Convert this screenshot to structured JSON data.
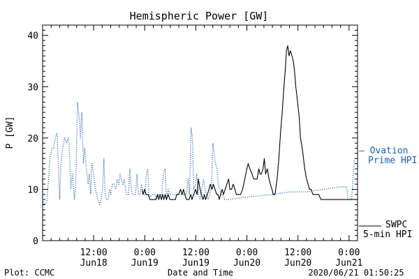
{
  "chart_data": {
    "type": "line",
    "title": "Hemispheric Power [GW]",
    "ylabel": "P [GW]",
    "xlabel": "Date and Time",
    "ylim": [
      0,
      42
    ],
    "y_ticks": [
      "0",
      "10",
      "20",
      "30",
      "40"
    ],
    "x_ticks": [
      {
        "hours": 12,
        "time": "12:00",
        "date": "Jun18"
      },
      {
        "hours": 24,
        "time": "0:00",
        "date": "Jun19"
      },
      {
        "hours": 36,
        "time": "12:00",
        "date": "Jun19"
      },
      {
        "hours": 48,
        "time": "0:00",
        "date": "Jun20"
      },
      {
        "hours": 60,
        "time": "12:00",
        "date": "Jun20"
      },
      {
        "hours": 72,
        "time": "0:00",
        "date": "Jun21"
      }
    ],
    "xlim_hours": [
      0,
      74
    ],
    "series": [
      {
        "name": "Ovation Prime HPI",
        "color": "#1f5fae",
        "style": "dotted",
        "points": [
          [
            0,
            8
          ],
          [
            0.4,
            7
          ],
          [
            1,
            7.5
          ],
          [
            1.4,
            12
          ],
          [
            1.7,
            16
          ],
          [
            2.2,
            18
          ],
          [
            2.6,
            18
          ],
          [
            3,
            20
          ],
          [
            3.4,
            21
          ],
          [
            3.7,
            15
          ],
          [
            4,
            8
          ],
          [
            4.3,
            15
          ],
          [
            4.7,
            18
          ],
          [
            5.2,
            20
          ],
          [
            5.6,
            19
          ],
          [
            6,
            20
          ],
          [
            6.3,
            18
          ],
          [
            6.6,
            10
          ],
          [
            7,
            13
          ],
          [
            7.5,
            8
          ],
          [
            7.8,
            11
          ],
          [
            8.2,
            27
          ],
          [
            8.6,
            24
          ],
          [
            8.9,
            20
          ],
          [
            9.2,
            25
          ],
          [
            9.6,
            15
          ],
          [
            9.9,
            18
          ],
          [
            10.3,
            14
          ],
          [
            10.7,
            11
          ],
          [
            11,
            13
          ],
          [
            11.3,
            9
          ],
          [
            11.6,
            15
          ],
          [
            12,
            13
          ],
          [
            12.4,
            10
          ],
          [
            12.7,
            9
          ],
          [
            13,
            8
          ],
          [
            13.4,
            7
          ],
          [
            13.7,
            8
          ],
          [
            14.1,
            10
          ],
          [
            14.4,
            16
          ],
          [
            14.7,
            9
          ],
          [
            15,
            8
          ],
          [
            15.4,
            8
          ],
          [
            15.7,
            10
          ],
          [
            16,
            9
          ],
          [
            16.4,
            11
          ],
          [
            16.8,
            11
          ],
          [
            17.2,
            10
          ],
          [
            17.5,
            12
          ],
          [
            17.9,
            11
          ],
          [
            18.2,
            13
          ],
          [
            18.5,
            12
          ],
          [
            18.9,
            11
          ],
          [
            19.2,
            12
          ],
          [
            19.5,
            10
          ],
          [
            19.8,
            9
          ],
          [
            20.2,
            9
          ],
          [
            20.5,
            14
          ],
          [
            20.8,
            10
          ],
          [
            21.1,
            9
          ],
          [
            21.4,
            9
          ],
          [
            21.8,
            9
          ],
          [
            22.2,
            13
          ],
          [
            22.5,
            9
          ],
          [
            22.9,
            9
          ],
          [
            23.2,
            11
          ],
          [
            23.6,
            9
          ],
          [
            24,
            9
          ],
          [
            24.4,
            13
          ],
          [
            24.7,
            14
          ],
          [
            25,
            9
          ],
          [
            25.3,
            8.5
          ],
          [
            25.7,
            9
          ],
          [
            26,
            9
          ],
          [
            26.4,
            9
          ],
          [
            26.8,
            8
          ],
          [
            27.2,
            9
          ],
          [
            27.6,
            9
          ],
          [
            28,
            9
          ],
          [
            28.4,
            13
          ],
          [
            28.8,
            14
          ],
          [
            29.1,
            8
          ],
          [
            29.5,
            10
          ],
          [
            29.9,
            9
          ],
          [
            30.3,
            9
          ],
          [
            30.6,
            9
          ],
          [
            31,
            9
          ],
          [
            31.4,
            9
          ],
          [
            31.8,
            9
          ],
          [
            32.2,
            9
          ],
          [
            32.6,
            9
          ],
          [
            33,
            9
          ],
          [
            33.4,
            9
          ],
          [
            33.8,
            9
          ],
          [
            34.2,
            12
          ],
          [
            34.5,
            9
          ],
          [
            34.9,
            22
          ],
          [
            35.2,
            20
          ],
          [
            35.5,
            10
          ],
          [
            35.9,
            11
          ],
          [
            36.2,
            13
          ],
          [
            36.6,
            9
          ],
          [
            37,
            8
          ],
          [
            37.4,
            10
          ],
          [
            37.8,
            12
          ],
          [
            38.2,
            10
          ],
          [
            38.5,
            9
          ],
          [
            38.9,
            8
          ],
          [
            39.3,
            9
          ],
          [
            39.7,
            11
          ],
          [
            40,
            19
          ],
          [
            40.3,
            17
          ],
          [
            40.6,
            15
          ],
          [
            41,
            14
          ],
          [
            41.3,
            11
          ],
          [
            41.6,
            10
          ],
          [
            42,
            9
          ],
          [
            42.4,
            9
          ],
          [
            42.8,
            8
          ],
          [
            43.5,
            8
          ],
          [
            48,
            8.5
          ],
          [
            54,
            9
          ],
          [
            58,
            9.5
          ],
          [
            62,
            9.5
          ],
          [
            66,
            10
          ],
          [
            70,
            10.5
          ],
          [
            71.4,
            10.5
          ],
          [
            71.8,
            8
          ],
          [
            72.2,
            8
          ],
          [
            72.6,
            8
          ],
          [
            73,
            13
          ],
          [
            73.3,
            16
          ]
        ]
      },
      {
        "name": "SWPC 5-min HPI",
        "color": "#000000",
        "style": "solid",
        "points": [
          [
            23.4,
            10
          ],
          [
            23.6,
            9
          ],
          [
            24,
            10
          ],
          [
            24.3,
            9
          ],
          [
            24.8,
            9
          ],
          [
            25.2,
            8
          ],
          [
            26.6,
            8
          ],
          [
            27,
            9
          ],
          [
            27.3,
            8
          ],
          [
            27.6,
            9
          ],
          [
            27.9,
            8
          ],
          [
            28.2,
            9
          ],
          [
            28.5,
            8
          ],
          [
            28.8,
            9
          ],
          [
            29.1,
            8
          ],
          [
            29.5,
            9
          ],
          [
            29.9,
            8
          ],
          [
            31.2,
            8
          ],
          [
            31.5,
            9
          ],
          [
            32,
            9
          ],
          [
            32.4,
            10
          ],
          [
            32.8,
            9
          ],
          [
            33.1,
            10
          ],
          [
            33.4,
            9
          ],
          [
            33.8,
            8
          ],
          [
            34.4,
            8
          ],
          [
            34.8,
            9
          ],
          [
            35.1,
            8
          ],
          [
            35.5,
            9
          ],
          [
            35.9,
            10
          ],
          [
            36.3,
            9
          ],
          [
            36.6,
            12
          ],
          [
            37,
            10
          ],
          [
            37.3,
            9
          ],
          [
            37.7,
            8
          ],
          [
            38,
            9
          ],
          [
            38.3,
            8
          ],
          [
            38.7,
            9
          ],
          [
            39.1,
            10
          ],
          [
            39.4,
            11
          ],
          [
            39.8,
            10
          ],
          [
            40.1,
            11
          ],
          [
            40.5,
            10
          ],
          [
            40.9,
            9
          ],
          [
            41.2,
            9
          ],
          [
            41.5,
            8
          ],
          [
            41.8,
            9
          ],
          [
            42.2,
            10
          ],
          [
            42.5,
            9
          ],
          [
            42.9,
            10
          ],
          [
            43.3,
            11
          ],
          [
            43.7,
            12
          ],
          [
            44,
            10
          ],
          [
            44.4,
            10
          ],
          [
            44.8,
            11
          ],
          [
            45.2,
            10
          ],
          [
            45.5,
            9
          ],
          [
            46,
            9
          ],
          [
            46.5,
            9
          ],
          [
            47,
            10
          ],
          [
            47.5,
            12
          ],
          [
            48,
            14
          ],
          [
            48.3,
            15
          ],
          [
            48.7,
            14
          ],
          [
            49.2,
            13
          ],
          [
            49.6,
            12
          ],
          [
            50.4,
            12
          ],
          [
            50.8,
            14
          ],
          [
            51.1,
            13
          ],
          [
            51.4,
            13
          ],
          [
            51.8,
            14
          ],
          [
            52.1,
            16
          ],
          [
            52.4,
            13
          ],
          [
            52.8,
            14
          ],
          [
            53.2,
            12
          ],
          [
            53.5,
            11
          ],
          [
            53.9,
            10
          ],
          [
            54.2,
            9
          ],
          [
            54.6,
            9
          ],
          [
            55.1,
            12
          ],
          [
            55.5,
            16
          ],
          [
            55.9,
            21
          ],
          [
            56.3,
            25
          ],
          [
            56.7,
            30
          ],
          [
            57,
            33
          ],
          [
            57.3,
            37
          ],
          [
            57.6,
            38
          ],
          [
            57.9,
            36
          ],
          [
            58.2,
            37
          ],
          [
            58.6,
            36
          ],
          [
            58.9,
            35
          ],
          [
            59.2,
            33
          ],
          [
            59.5,
            30
          ],
          [
            59.9,
            27
          ],
          [
            60.3,
            24
          ],
          [
            60.6,
            20
          ],
          [
            61,
            18
          ],
          [
            61.3,
            16
          ],
          [
            61.6,
            14
          ],
          [
            62,
            12
          ],
          [
            62.4,
            11
          ],
          [
            62.7,
            10
          ],
          [
            63.1,
            10
          ],
          [
            63.5,
            9
          ],
          [
            64.3,
            9
          ],
          [
            64.9,
            9
          ],
          [
            65.4,
            8
          ],
          [
            72.2,
            8
          ],
          [
            72.6,
            8
          ],
          [
            74,
            8
          ]
        ]
      }
    ],
    "legend": [
      {
        "series": "Ovation Prime HPI",
        "lines": [
          "– Ovation",
          "Prime HPI"
        ]
      },
      {
        "series": "SWPC 5-min HPI",
        "lines": [
          "SWPC",
          "5-min HPI"
        ]
      }
    ]
  },
  "footer": {
    "left": "Plot: CCMC",
    "center": "Date and Time",
    "right": "2020/06/21 01:50:25"
  }
}
